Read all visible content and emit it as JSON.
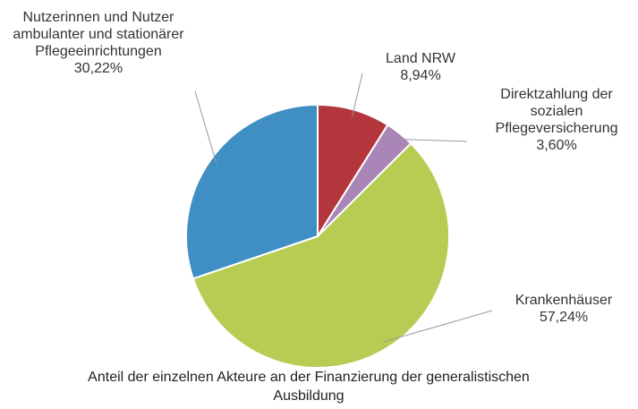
{
  "chart_data": {
    "type": "pie",
    "title": "Anteil der einzelnen Akteure an der Finanzierung der generalistischen Ausbildung",
    "categories": [
      "Land NRW",
      "Direktzahlung der sozialen Pflegeversicherung",
      "Krankenhäuser",
      "Nutzerinnen und Nutzer ambulanter und stationärer Pflegeeinrichtungen"
    ],
    "values": [
      8.94,
      3.6,
      57.24,
      30.22
    ],
    "value_labels": [
      "8,94%",
      "3,60%",
      "57,24%",
      "30,22%"
    ],
    "colors": [
      "#b3363c",
      "#a985b8",
      "#b7cc52",
      "#3f8ec4"
    ]
  }
}
